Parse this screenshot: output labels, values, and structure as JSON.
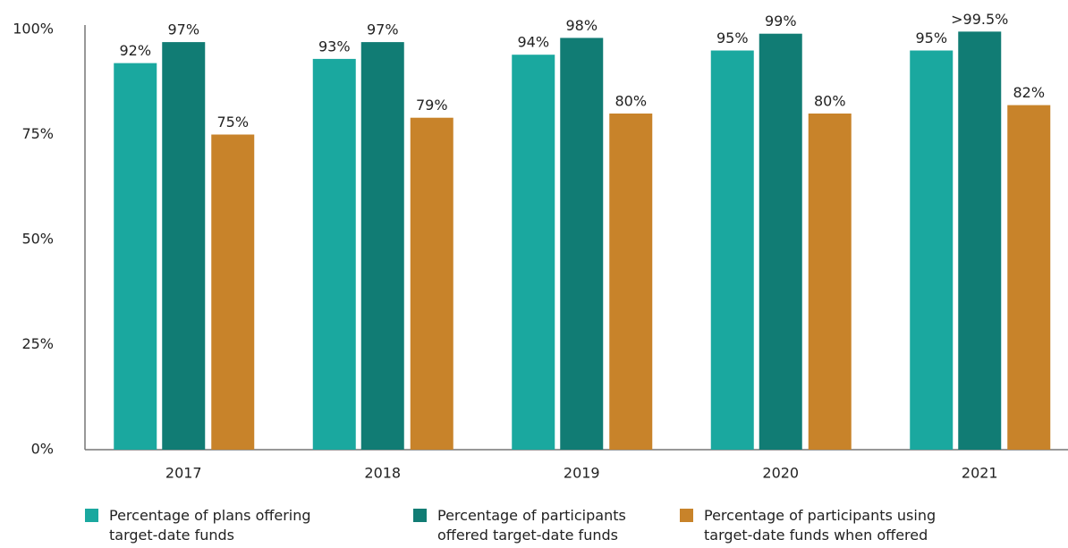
{
  "chart_data": {
    "type": "bar",
    "categories": [
      "2017",
      "2018",
      "2019",
      "2020",
      "2021"
    ],
    "series": [
      {
        "name": "Percentage of plans offering target-date funds",
        "color": "#1aa89f",
        "values": [
          92,
          93,
          94,
          95,
          95
        ],
        "value_labels": [
          "92%",
          "93%",
          "94%",
          "95%",
          "95%"
        ]
      },
      {
        "name": "Percentage of participants offered target-date funds",
        "color": "#117c74",
        "values": [
          97,
          97,
          98,
          99,
          99.5
        ],
        "value_labels": [
          "97%",
          "97%",
          "98%",
          "99%",
          ">99.5%"
        ]
      },
      {
        "name": "Percentage of participants using target-date funds when offered",
        "color": "#c8832a",
        "values": [
          75,
          79,
          80,
          80,
          82
        ],
        "value_labels": [
          "75%",
          "79%",
          "80%",
          "80%",
          "82%"
        ]
      }
    ],
    "ylim": [
      0,
      100
    ],
    "yticks": [
      {
        "value": 0,
        "label": "0%"
      },
      {
        "value": 25,
        "label": "25%"
      },
      {
        "value": 50,
        "label": "50%"
      },
      {
        "value": 75,
        "label": "75%"
      },
      {
        "value": 100,
        "label": "100%"
      }
    ],
    "grid": false,
    "legend": "bottom"
  }
}
